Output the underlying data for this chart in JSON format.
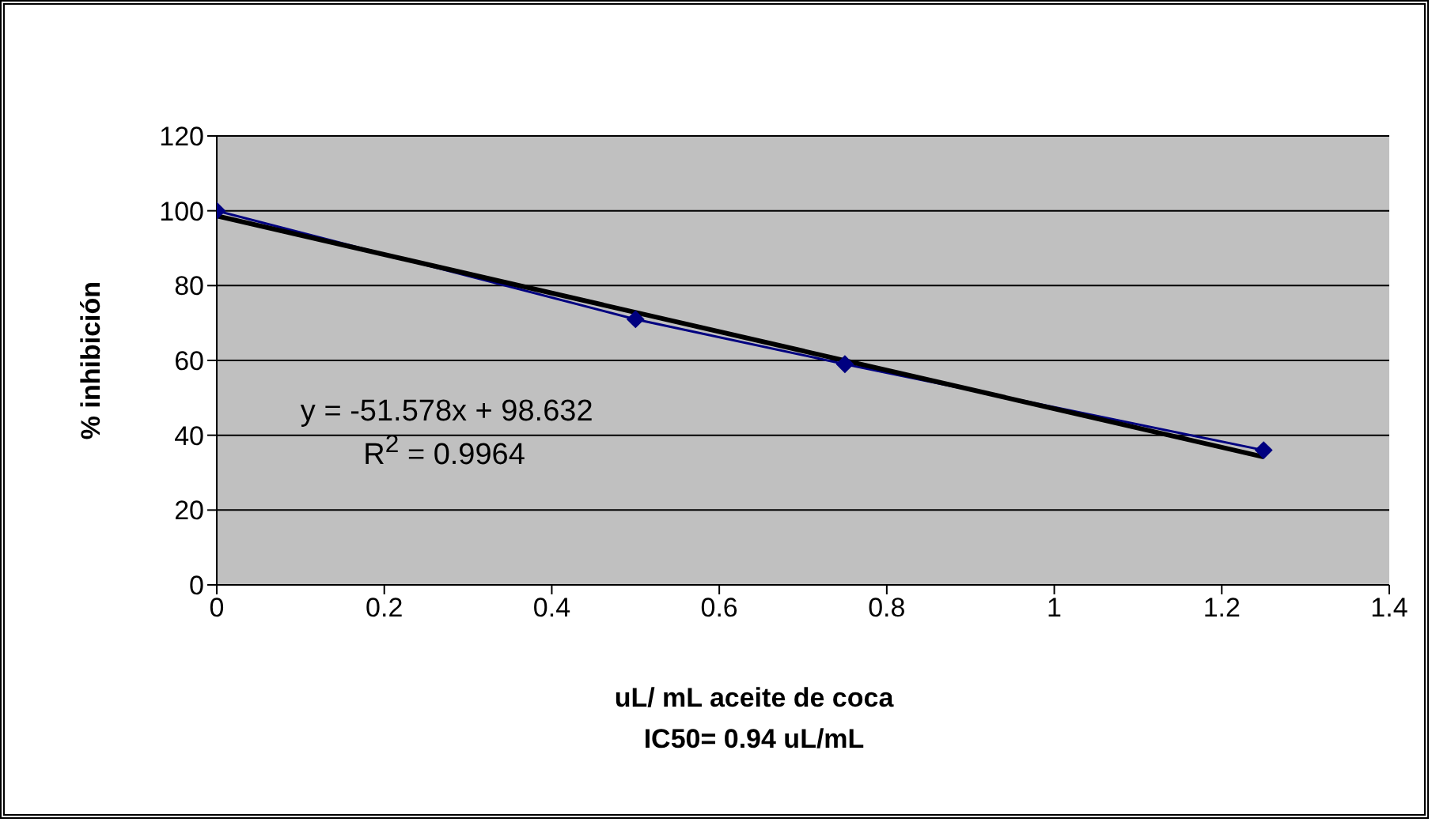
{
  "chart_data": {
    "type": "line",
    "xlabel": "uL/ mL aceite de coca",
    "ylabel": "% inhibición",
    "xlim": [
      0,
      1.4
    ],
    "xticks": [
      0,
      0.2,
      0.4,
      0.6,
      0.8,
      1,
      1.2,
      1.4
    ],
    "ylim": [
      0,
      120
    ],
    "yticks": [
      0,
      20,
      40,
      60,
      80,
      100,
      120
    ],
    "grid": "y",
    "series": [
      {
        "color": "#000080",
        "x": [
          0,
          0.5,
          0.75,
          1.25
        ],
        "values": [
          100,
          71,
          59,
          36
        ],
        "marker": "diamond"
      },
      {
        "color": "#000000",
        "x": [
          0,
          1.25
        ],
        "values": [
          98.6,
          34.2
        ],
        "marker": "none"
      }
    ],
    "annotations": [
      "y = -51.578x + 98.632",
      "R$^{2}$ = 0.9964",
      "IC50= 0.94 uL/mL"
    ]
  }
}
